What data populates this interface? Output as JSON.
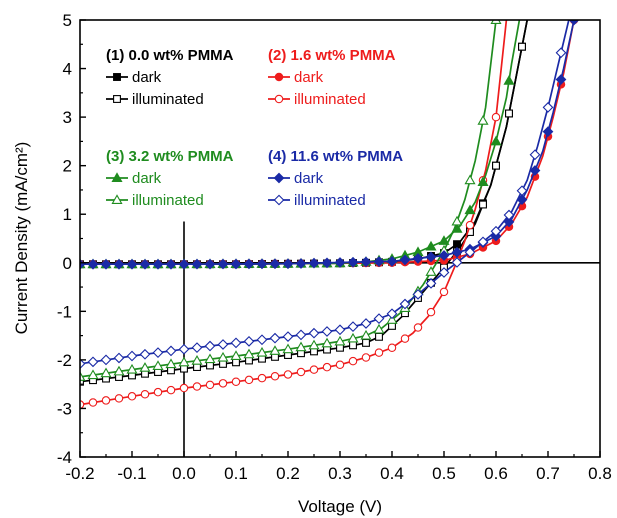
{
  "chart_data": {
    "type": "line",
    "xlabel": "Voltage (V)",
    "ylabel": "Current Density (mA/cm²)",
    "xlim": [
      -0.2,
      0.8
    ],
    "ylim": [
      -4,
      5
    ],
    "x_ticks": [
      "-0.2",
      "-0.1",
      "0.0",
      "0.1",
      "0.2",
      "0.3",
      "0.4",
      "0.5",
      "0.6",
      "0.7",
      "0.8"
    ],
    "y_ticks": [
      "-4",
      "-3",
      "-2",
      "-1",
      "0",
      "1",
      "2",
      "3",
      "4",
      "5"
    ],
    "grid": false,
    "reference_lines": {
      "x": 0,
      "y": 0
    },
    "groups": [
      {
        "label": "(1)  0.0 wt% PMMA",
        "color": "#000000",
        "dark_label": "dark",
        "illum_label": "illuminated",
        "dark_marker": "square-filled",
        "illum_marker": "square-open",
        "dark": {
          "x": [
            -0.2,
            0.0,
            0.1,
            0.2,
            0.3,
            0.35,
            0.4,
            0.45,
            0.5,
            0.53,
            0.56,
            0.59,
            0.62,
            0.64,
            0.66
          ],
          "y": [
            -0.03,
            -0.03,
            -0.03,
            -0.02,
            -0.01,
            0.0,
            0.02,
            0.08,
            0.2,
            0.42,
            0.85,
            1.6,
            2.8,
            3.9,
            5.0
          ]
        },
        "illuminated": {
          "x": [
            -0.2,
            -0.1,
            0.0,
            0.1,
            0.2,
            0.3,
            0.35,
            0.38,
            0.42,
            0.46,
            0.5,
            0.53,
            0.56,
            0.59,
            0.62,
            0.64,
            0.66
          ],
          "y": [
            -2.45,
            -2.32,
            -2.18,
            -2.05,
            -1.9,
            -1.75,
            -1.65,
            -1.5,
            -1.1,
            -0.6,
            -0.1,
            0.3,
            0.8,
            1.6,
            2.8,
            3.9,
            5.0
          ]
        }
      },
      {
        "label": "(2) 1.6 wt% PMMA",
        "color": "#ee1c1c",
        "dark_label": "dark",
        "illum_label": "illuminated",
        "dark_marker": "circle-filled",
        "illum_marker": "circle-open",
        "dark": {
          "x": [
            -0.2,
            0.0,
            0.2,
            0.4,
            0.5,
            0.55,
            0.6,
            0.63,
            0.66,
            0.69,
            0.71,
            0.73,
            0.75
          ],
          "y": [
            -0.03,
            -0.03,
            -0.02,
            0.0,
            0.05,
            0.18,
            0.45,
            0.8,
            1.35,
            2.2,
            3.0,
            3.9,
            5.0
          ]
        },
        "illuminated": {
          "x": [
            -0.2,
            -0.1,
            0.0,
            0.1,
            0.2,
            0.3,
            0.35,
            0.4,
            0.44,
            0.47,
            0.5,
            0.52,
            0.54,
            0.56,
            0.58,
            0.6,
            0.62
          ],
          "y": [
            -2.92,
            -2.75,
            -2.58,
            -2.45,
            -2.3,
            -2.1,
            -1.95,
            -1.75,
            -1.45,
            -1.1,
            -0.6,
            -0.1,
            0.45,
            1.1,
            1.9,
            3.0,
            5.0
          ]
        }
      },
      {
        "label": "(3)  3.2 wt% PMMA",
        "color": "#1f8c1f",
        "dark_label": "dark",
        "illum_label": "illuminated",
        "dark_marker": "triangle-filled",
        "illum_marker": "triangle-open",
        "dark": {
          "x": [
            -0.2,
            0.0,
            0.2,
            0.3,
            0.35,
            0.4,
            0.45,
            0.5,
            0.53,
            0.56,
            0.58,
            0.6,
            0.62,
            0.63,
            0.645
          ],
          "y": [
            -0.03,
            -0.03,
            -0.02,
            -0.01,
            0.02,
            0.08,
            0.22,
            0.45,
            0.75,
            1.25,
            1.8,
            2.5,
            3.4,
            4.1,
            5.0
          ]
        },
        "illuminated": {
          "x": [
            -0.2,
            -0.1,
            0.0,
            0.1,
            0.2,
            0.3,
            0.35,
            0.38,
            0.42,
            0.46,
            0.5,
            0.52,
            0.54,
            0.56,
            0.58,
            0.6
          ],
          "y": [
            -2.35,
            -2.2,
            -2.05,
            -1.92,
            -1.78,
            -1.62,
            -1.5,
            -1.35,
            -1.0,
            -0.45,
            0.25,
            0.7,
            1.3,
            2.1,
            3.2,
            5.0
          ]
        }
      },
      {
        "label": "(4) 11.6 wt% PMMA",
        "color": "#1a2aa6",
        "dark_label": "dark",
        "illum_label": "illuminated",
        "dark_marker": "diamond-filled",
        "illum_marker": "diamond-open",
        "dark": {
          "x": [
            -0.2,
            0.0,
            0.2,
            0.4,
            0.5,
            0.55,
            0.6,
            0.63,
            0.66,
            0.69,
            0.71,
            0.73,
            0.75
          ],
          "y": [
            -0.03,
            -0.03,
            -0.02,
            0.03,
            0.15,
            0.28,
            0.55,
            0.9,
            1.5,
            2.3,
            3.1,
            4.0,
            5.0
          ]
        },
        "illuminated": {
          "x": [
            -0.2,
            -0.1,
            0.0,
            0.1,
            0.2,
            0.3,
            0.35,
            0.4,
            0.45,
            0.5,
            0.53,
            0.56,
            0.6,
            0.63,
            0.66,
            0.68,
            0.7,
            0.72,
            0.74
          ],
          "y": [
            -2.08,
            -1.92,
            -1.78,
            -1.65,
            -1.52,
            -1.38,
            -1.25,
            -1.05,
            -0.65,
            -0.2,
            0.05,
            0.3,
            0.65,
            1.05,
            1.7,
            2.4,
            3.2,
            4.1,
            5.0
          ]
        }
      }
    ]
  }
}
